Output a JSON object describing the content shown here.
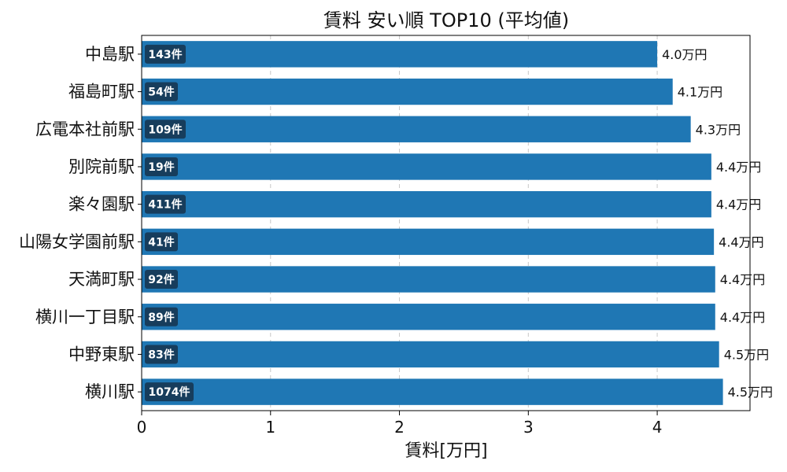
{
  "chart_data": {
    "type": "bar",
    "orientation": "horizontal",
    "title": "賃料 安い順 TOP10 (平均値)",
    "xlabel": "賃料[万円]",
    "ylabel": "",
    "xlim": [
      0,
      4.72
    ],
    "xticks": [
      0,
      1,
      2,
      3,
      4
    ],
    "grid": "x-dashed",
    "bar_color": "#1f77b4",
    "badge_color": "#173d5c",
    "categories": [
      "中島駅",
      "福島町駅",
      "広電本社前駅",
      "別院前駅",
      "楽々園駅",
      "山陽女学園前駅",
      "天満町駅",
      "横川一丁目駅",
      "中野東駅",
      "横川駅"
    ],
    "values": [
      4.0,
      4.12,
      4.26,
      4.42,
      4.42,
      4.44,
      4.45,
      4.45,
      4.48,
      4.51
    ],
    "value_labels": [
      "4.0万円",
      "4.1万円",
      "4.3万円",
      "4.4万円",
      "4.4万円",
      "4.4万円",
      "4.4万円",
      "4.4万円",
      "4.5万円",
      "4.5万円"
    ],
    "counts": [
      "143件",
      "54件",
      "109件",
      "19件",
      "411件",
      "41件",
      "92件",
      "89件",
      "83件",
      "1074件"
    ]
  }
}
